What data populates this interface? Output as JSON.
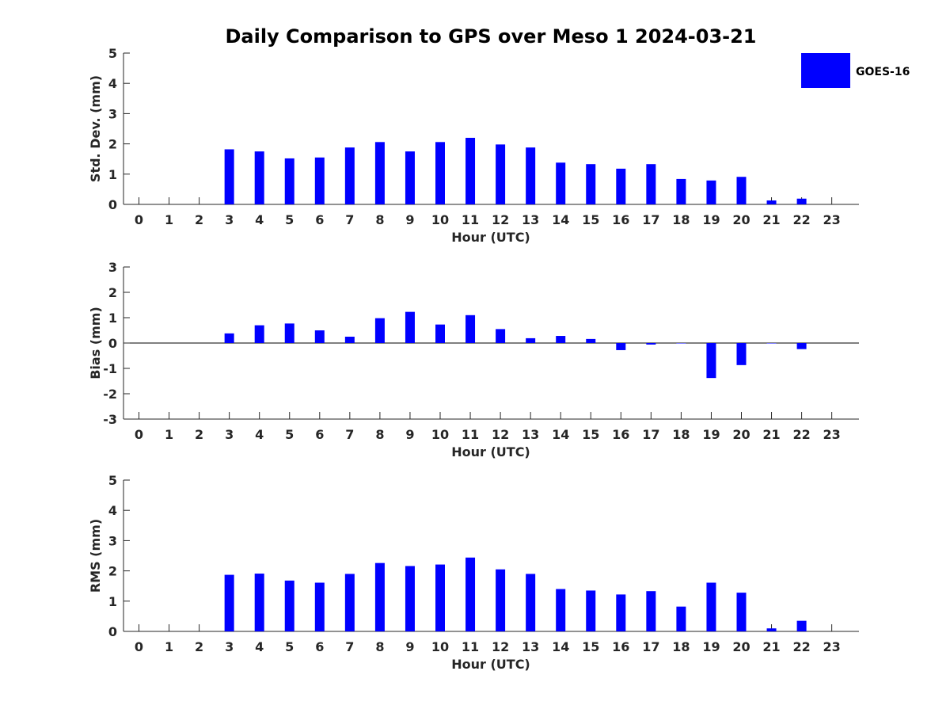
{
  "chart_data": {
    "type": "bar",
    "title": "Daily Comparison to GPS over Meso 1 2024-03-21",
    "bar_color": "#0000ff",
    "legend": {
      "label": "GOES-16",
      "placement": "top-right"
    },
    "categories": [
      "0",
      "1",
      "2",
      "3",
      "4",
      "5",
      "6",
      "7",
      "8",
      "9",
      "10",
      "11",
      "12",
      "13",
      "14",
      "15",
      "16",
      "17",
      "18",
      "19",
      "20",
      "21",
      "22",
      "23"
    ],
    "panels": [
      {
        "id": "stddev",
        "ylabel": "Std. Dev. (mm)",
        "xlabel": "Hour (UTC)",
        "ylim": [
          0,
          5
        ],
        "yticks": [
          "0",
          "1",
          "2",
          "3",
          "4",
          "5"
        ],
        "values": [
          null,
          null,
          null,
          1.82,
          1.75,
          1.52,
          1.55,
          1.88,
          2.06,
          1.75,
          2.06,
          2.2,
          1.98,
          1.88,
          1.38,
          1.33,
          1.18,
          1.33,
          0.84,
          0.79,
          0.91,
          0.13,
          0.19,
          null
        ]
      },
      {
        "id": "bias",
        "ylabel": "Bias (mm)",
        "xlabel": "Hour (UTC)",
        "ylim": [
          -3,
          3
        ],
        "yticks": [
          "-3",
          "-2",
          "-1",
          "0",
          "1",
          "2",
          "3"
        ],
        "values": [
          null,
          null,
          null,
          0.38,
          0.7,
          0.77,
          0.5,
          0.25,
          0.98,
          1.23,
          0.73,
          1.1,
          0.55,
          0.19,
          0.28,
          0.16,
          -0.28,
          -0.06,
          0.0,
          -1.38,
          -0.87,
          0.0,
          -0.24,
          null
        ]
      },
      {
        "id": "rms",
        "ylabel": "RMS (mm)",
        "xlabel": "Hour (UTC)",
        "ylim": [
          0,
          5
        ],
        "yticks": [
          "0",
          "1",
          "2",
          "3",
          "4",
          "5"
        ],
        "values": [
          null,
          null,
          null,
          1.87,
          1.91,
          1.68,
          1.61,
          1.9,
          2.26,
          2.16,
          2.21,
          2.44,
          2.05,
          1.9,
          1.4,
          1.35,
          1.22,
          1.33,
          0.82,
          1.61,
          1.28,
          0.1,
          0.35,
          null
        ]
      }
    ],
    "grid": false
  }
}
